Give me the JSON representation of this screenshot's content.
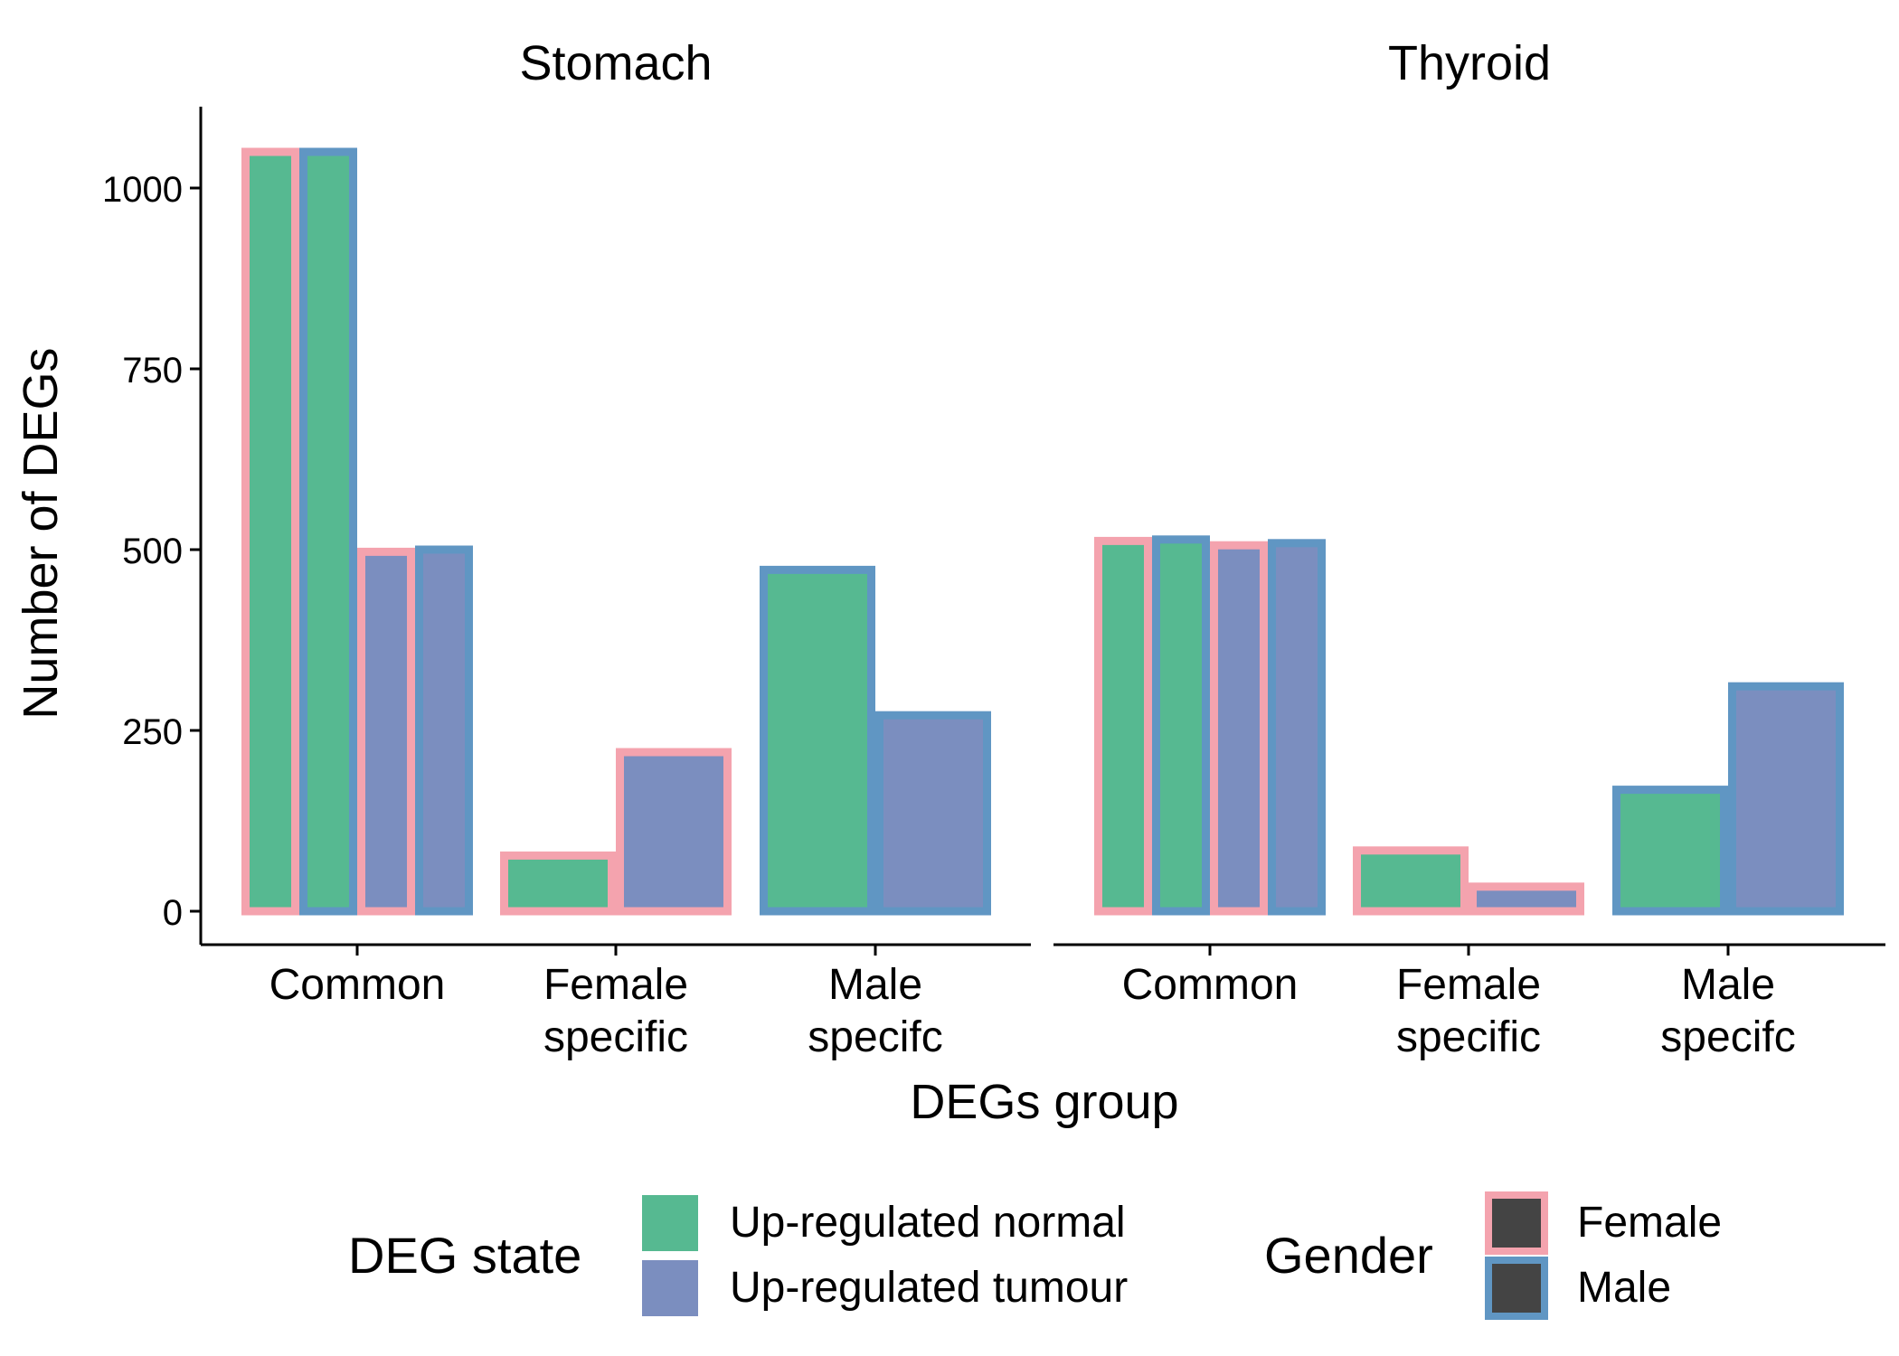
{
  "chart_data": {
    "type": "bar",
    "xlabel": "DEGs group",
    "ylabel": "Number of DEGs",
    "ylim": [
      0,
      1100
    ],
    "yticks": [
      0,
      250,
      500,
      750,
      1000
    ],
    "categories": [
      [
        "Common"
      ],
      [
        "Female",
        "specific"
      ],
      [
        "Male",
        "specifc"
      ]
    ],
    "grid": false,
    "legend_position": "bottom",
    "facets": [
      {
        "title": "Stomach",
        "bars": [
          {
            "category": 0,
            "state": 0,
            "gender": 0,
            "value": 1050
          },
          {
            "category": 0,
            "state": 0,
            "gender": 1,
            "value": 1050
          },
          {
            "category": 0,
            "state": 1,
            "gender": 0,
            "value": 497
          },
          {
            "category": 0,
            "state": 1,
            "gender": 1,
            "value": 500
          },
          {
            "category": 1,
            "state": 0,
            "gender": 0,
            "value": 77
          },
          {
            "category": 1,
            "state": 1,
            "gender": 0,
            "value": 220
          },
          {
            "category": 2,
            "state": 0,
            "gender": 1,
            "value": 472
          },
          {
            "category": 2,
            "state": 1,
            "gender": 1,
            "value": 271
          }
        ]
      },
      {
        "title": "Thyroid",
        "bars": [
          {
            "category": 0,
            "state": 0,
            "gender": 0,
            "value": 512
          },
          {
            "category": 0,
            "state": 0,
            "gender": 1,
            "value": 514
          },
          {
            "category": 0,
            "state": 1,
            "gender": 0,
            "value": 506
          },
          {
            "category": 0,
            "state": 1,
            "gender": 1,
            "value": 509
          },
          {
            "category": 1,
            "state": 0,
            "gender": 0,
            "value": 84
          },
          {
            "category": 1,
            "state": 1,
            "gender": 0,
            "value": 34
          },
          {
            "category": 2,
            "state": 0,
            "gender": 1,
            "value": 168
          },
          {
            "category": 2,
            "state": 1,
            "gender": 1,
            "value": 311
          }
        ]
      }
    ],
    "fill_legend": {
      "title": "DEG state",
      "items": [
        {
          "label": "Up-regulated normal",
          "color": "#56b991"
        },
        {
          "label": "Up-regulated tumour",
          "color": "#7b8ebf"
        }
      ]
    },
    "outline_legend": {
      "title": "Gender",
      "items": [
        {
          "label": "Female",
          "color": "#f4a3ae"
        },
        {
          "label": "Male",
          "color": "#6096c3"
        }
      ]
    }
  }
}
